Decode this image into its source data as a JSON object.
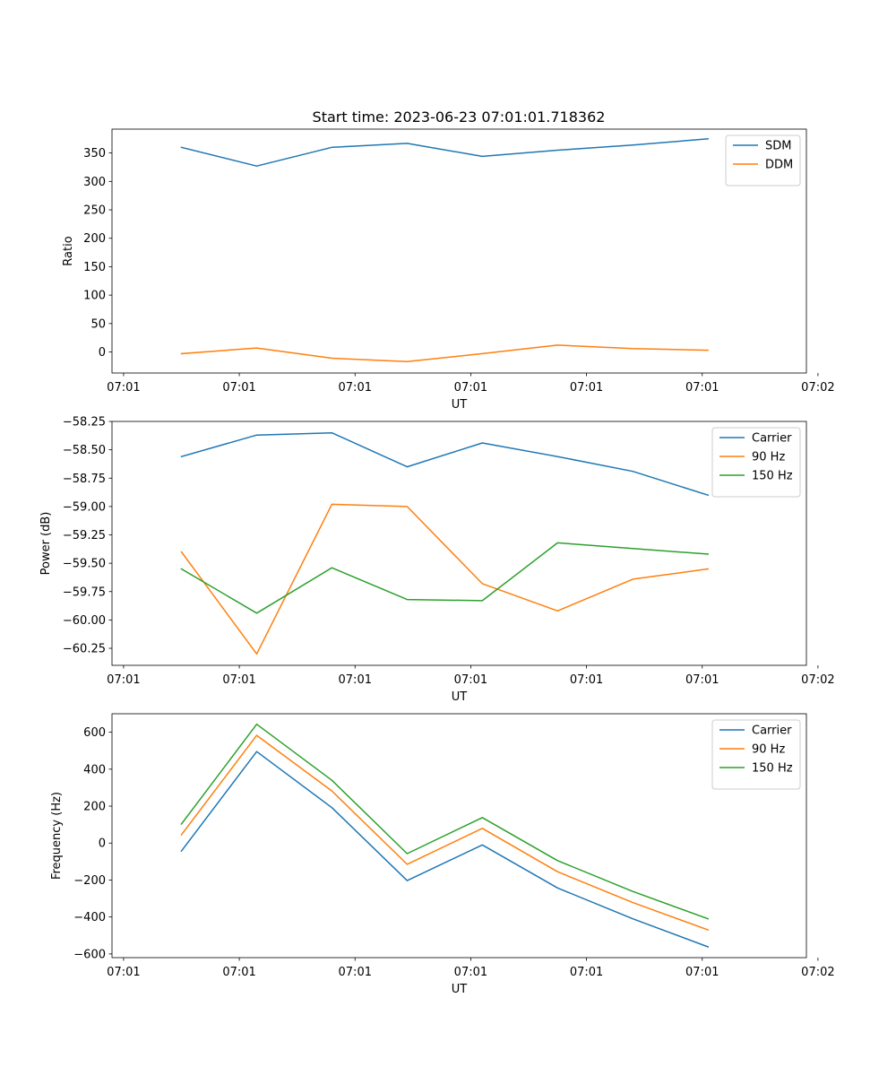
{
  "title": "Start time: 2023-06-23 07:01:01.718362",
  "colors": {
    "blue": "#1f77b4",
    "orange": "#ff7f0e",
    "green": "#2ca02c"
  },
  "chart_data": [
    {
      "type": "line",
      "ylabel": "Ratio",
      "xlabel": "UT",
      "ylim": [
        -37,
        392
      ],
      "yticks": [
        0,
        50,
        100,
        150,
        200,
        250,
        300,
        350
      ],
      "xtick_labels": [
        "07:01",
        "07:01",
        "07:01",
        "07:01",
        "07:01",
        "07:01",
        "07:02"
      ],
      "legend": "top-right",
      "x": [
        0.5,
        1.15,
        1.8,
        2.45,
        3.1,
        3.75,
        4.4,
        5.05
      ],
      "series": [
        {
          "name": "SDM",
          "color": "#1f77b4",
          "values": [
            360,
            327,
            360,
            367,
            344,
            355,
            364,
            375
          ]
        },
        {
          "name": "DDM",
          "color": "#ff7f0e",
          "values": [
            -3,
            7,
            -11,
            -17,
            -3,
            12,
            6,
            3
          ]
        }
      ]
    },
    {
      "type": "line",
      "ylabel": "Power (dB)",
      "xlabel": "UT",
      "ylim": [
        -60.4,
        -58.25
      ],
      "yticks": [
        -58.25,
        -58.5,
        -58.75,
        -59.0,
        -59.25,
        -59.5,
        -59.75,
        -60.0,
        -60.25
      ],
      "ytick_labels": [
        "−58.25",
        "−58.50",
        "−58.75",
        "−59.00",
        "−59.25",
        "−59.50",
        "−59.75",
        "−60.00",
        "−60.25"
      ],
      "xtick_labels": [
        "07:01",
        "07:01",
        "07:01",
        "07:01",
        "07:01",
        "07:01",
        "07:02"
      ],
      "legend": "top-right",
      "x": [
        0.5,
        1.15,
        1.8,
        2.45,
        3.1,
        3.75,
        4.4,
        5.05
      ],
      "series": [
        {
          "name": "Carrier",
          "color": "#1f77b4",
          "values": [
            -58.56,
            -58.37,
            -58.35,
            -58.65,
            -58.44,
            -58.56,
            -58.69,
            -58.9
          ]
        },
        {
          "name": "90 Hz",
          "color": "#ff7f0e",
          "values": [
            -59.4,
            -60.3,
            -58.98,
            -59.0,
            -59.68,
            -59.92,
            -59.64,
            -59.55
          ]
        },
        {
          "name": "150 Hz",
          "color": "#2ca02c",
          "values": [
            -59.55,
            -59.94,
            -59.54,
            -59.82,
            -59.83,
            -59.32,
            -59.37,
            -59.42
          ]
        }
      ]
    },
    {
      "type": "line",
      "ylabel": "Frequency (Hz)",
      "xlabel": "UT",
      "ylim": [
        -620,
        700
      ],
      "yticks": [
        -600,
        -400,
        -200,
        0,
        200,
        400,
        600
      ],
      "ytick_labels": [
        "−600",
        "−400",
        "−200",
        "0",
        "200",
        "400",
        "600"
      ],
      "xtick_labels": [
        "07:01",
        "07:01",
        "07:01",
        "07:01",
        "07:01",
        "07:01",
        "07:02"
      ],
      "legend": "top-right",
      "x": [
        0.5,
        1.15,
        1.8,
        2.45,
        3.1,
        3.75,
        4.4,
        5.05
      ],
      "series": [
        {
          "name": "Carrier",
          "color": "#1f77b4",
          "values": [
            -43,
            495,
            192,
            -203,
            -10,
            -243,
            -410,
            -562
          ]
        },
        {
          "name": "90 Hz",
          "color": "#ff7f0e",
          "values": [
            45,
            583,
            282,
            -115,
            80,
            -155,
            -322,
            -470
          ]
        },
        {
          "name": "150 Hz",
          "color": "#2ca02c",
          "values": [
            103,
            643,
            340,
            -57,
            138,
            -95,
            -262,
            -410
          ]
        }
      ]
    }
  ]
}
